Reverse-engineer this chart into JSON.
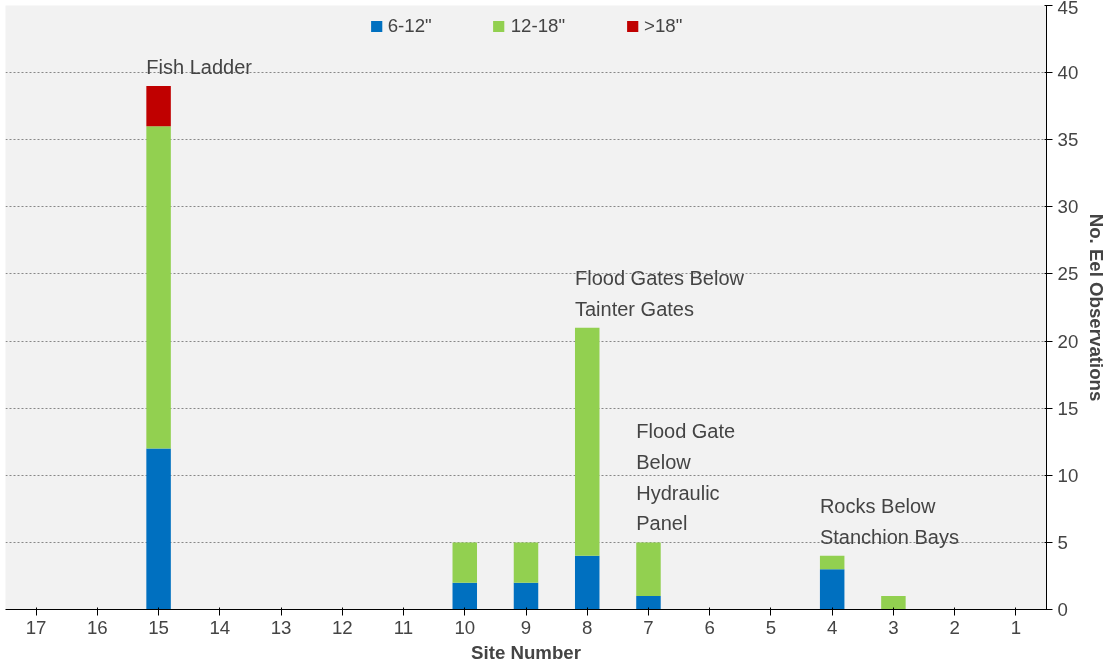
{
  "chart_data": {
    "type": "bar",
    "stacked": true,
    "xlabel": "Site Number",
    "ylabel": "No. Eel Observations",
    "categories": [
      "17",
      "16",
      "15",
      "14",
      "13",
      "12",
      "11",
      "10",
      "9",
      "8",
      "7",
      "6",
      "5",
      "4",
      "3",
      "2",
      "1"
    ],
    "series": [
      {
        "name": "6-12\"",
        "color": "#0070c0",
        "values": [
          0,
          0,
          12,
          0,
          0,
          0,
          0,
          2,
          2,
          4,
          1,
          0,
          0,
          3,
          0,
          0,
          0
        ]
      },
      {
        "name": "12-18\"",
        "color": "#92d050",
        "values": [
          0,
          0,
          24,
          0,
          0,
          0,
          0,
          3,
          3,
          17,
          4,
          0,
          0,
          1,
          1,
          0,
          0
        ]
      },
      {
        "name": ">18\"",
        "color": "#c00000",
        "values": [
          0,
          0,
          3,
          0,
          0,
          0,
          0,
          0,
          0,
          0,
          0,
          0,
          0,
          0,
          0,
          0,
          0
        ]
      }
    ],
    "ylim": [
      0,
      45
    ],
    "yticks": [
      0,
      5,
      10,
      15,
      20,
      25,
      30,
      35,
      40,
      45
    ],
    "grid": "y",
    "legend": "top",
    "annotations": [
      {
        "text": "Fish Ladder",
        "x": "15",
        "y": 39
      },
      {
        "text": "Flood Gates Below\nTainter Gates",
        "x": "8",
        "y": 21
      },
      {
        "text": "Flood Gate\nBelow\nHydraulic\nPanel",
        "x": "7",
        "y": 5
      },
      {
        "text": "Rocks Below\nStanchion Bays",
        "x": "4",
        "y": 4
      }
    ]
  }
}
